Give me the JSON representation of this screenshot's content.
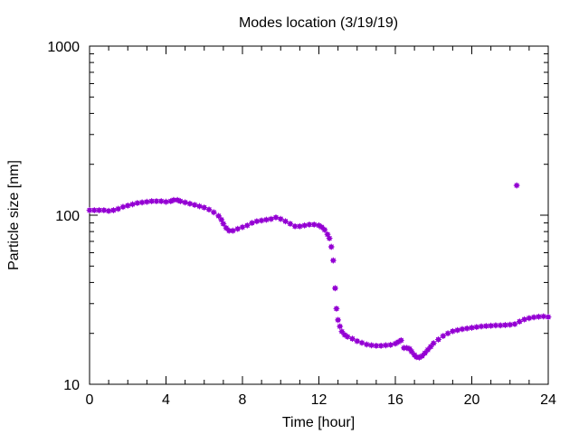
{
  "chart_data": {
    "type": "scatter",
    "title": "Modes location (3/19/19)",
    "xlabel": "Time [hour]",
    "ylabel": "Particle size [nm]",
    "xlim": [
      0,
      24
    ],
    "ylim": [
      10,
      1000
    ],
    "yscale": "log",
    "grid": false,
    "legend": "none",
    "xticks": [
      0,
      4,
      8,
      12,
      16,
      20,
      24
    ],
    "xtick_labels": [
      "0",
      "4",
      "8",
      "12",
      "16",
      "20",
      "24"
    ],
    "yticks": [
      10,
      100,
      1000
    ],
    "ytick_labels": [
      "10",
      "100",
      "1000"
    ],
    "marker_color": "#9400d3",
    "series": [
      {
        "points": [
          [
            0.0,
            107
          ],
          [
            0.25,
            107
          ],
          [
            0.5,
            107
          ],
          [
            0.75,
            107
          ],
          [
            1.0,
            106
          ],
          [
            1.25,
            107
          ],
          [
            1.5,
            109
          ],
          [
            1.75,
            112
          ],
          [
            2.0,
            114
          ],
          [
            2.25,
            116
          ],
          [
            2.5,
            118
          ],
          [
            2.75,
            119
          ],
          [
            3.0,
            120
          ],
          [
            3.25,
            121
          ],
          [
            3.5,
            121
          ],
          [
            3.75,
            121
          ],
          [
            4.0,
            120
          ],
          [
            4.25,
            121
          ],
          [
            4.4,
            123
          ],
          [
            4.6,
            123
          ],
          [
            4.75,
            121
          ],
          [
            5.0,
            119
          ],
          [
            5.25,
            117
          ],
          [
            5.5,
            115
          ],
          [
            5.75,
            113
          ],
          [
            6.0,
            111
          ],
          [
            6.25,
            108
          ],
          [
            6.5,
            104
          ],
          [
            6.75,
            99
          ],
          [
            6.9,
            94
          ],
          [
            7.0,
            89
          ],
          [
            7.15,
            84
          ],
          [
            7.3,
            81
          ],
          [
            7.5,
            81
          ],
          [
            7.75,
            83
          ],
          [
            8.0,
            85
          ],
          [
            8.25,
            87
          ],
          [
            8.5,
            90
          ],
          [
            8.75,
            92
          ],
          [
            9.0,
            93
          ],
          [
            9.25,
            94
          ],
          [
            9.5,
            95
          ],
          [
            9.75,
            97
          ],
          [
            10.0,
            95
          ],
          [
            10.25,
            92
          ],
          [
            10.5,
            89
          ],
          [
            10.75,
            86
          ],
          [
            11.0,
            86
          ],
          [
            11.25,
            87
          ],
          [
            11.5,
            88
          ],
          [
            11.75,
            88
          ],
          [
            12.0,
            87
          ],
          [
            12.15,
            85
          ],
          [
            12.3,
            82
          ],
          [
            12.45,
            77
          ],
          [
            12.55,
            73
          ],
          [
            12.65,
            65
          ],
          [
            12.75,
            54
          ],
          [
            12.85,
            37
          ],
          [
            12.92,
            28
          ],
          [
            13.0,
            24
          ],
          [
            13.1,
            22
          ],
          [
            13.2,
            20.5
          ],
          [
            13.35,
            19.6
          ],
          [
            13.5,
            19.1
          ],
          [
            13.75,
            18.6
          ],
          [
            14.0,
            18.0
          ],
          [
            14.25,
            17.6
          ],
          [
            14.5,
            17.2
          ],
          [
            14.75,
            17.0
          ],
          [
            15.0,
            16.9
          ],
          [
            15.25,
            16.9
          ],
          [
            15.5,
            17.0
          ],
          [
            15.75,
            17.1
          ],
          [
            16.0,
            17.4
          ],
          [
            16.15,
            17.8
          ],
          [
            16.3,
            18.2
          ],
          [
            16.45,
            16.4
          ],
          [
            16.6,
            16.4
          ],
          [
            16.75,
            16.2
          ],
          [
            16.85,
            15.6
          ],
          [
            17.0,
            14.9
          ],
          [
            17.1,
            14.5
          ],
          [
            17.25,
            14.4
          ],
          [
            17.4,
            14.7
          ],
          [
            17.55,
            15.3
          ],
          [
            17.7,
            16.0
          ],
          [
            17.85,
            16.7
          ],
          [
            18.0,
            17.5
          ],
          [
            18.25,
            18.4
          ],
          [
            18.5,
            19.3
          ],
          [
            18.75,
            20.0
          ],
          [
            19.0,
            20.6
          ],
          [
            19.25,
            20.9
          ],
          [
            19.5,
            21.2
          ],
          [
            19.75,
            21.4
          ],
          [
            20.0,
            21.6
          ],
          [
            20.25,
            21.8
          ],
          [
            20.5,
            22.0
          ],
          [
            20.75,
            22.1
          ],
          [
            21.0,
            22.2
          ],
          [
            21.25,
            22.3
          ],
          [
            21.5,
            22.3
          ],
          [
            21.75,
            22.4
          ],
          [
            22.0,
            22.5
          ],
          [
            22.25,
            22.7
          ],
          [
            22.35,
            150
          ],
          [
            22.5,
            23.5
          ],
          [
            22.75,
            24.2
          ],
          [
            23.0,
            24.6
          ],
          [
            23.25,
            24.9
          ],
          [
            23.5,
            25.1
          ],
          [
            23.75,
            25.2
          ],
          [
            24.0,
            25.0
          ]
        ]
      }
    ]
  }
}
